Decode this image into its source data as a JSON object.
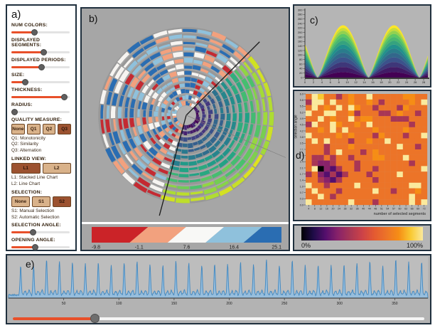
{
  "panels": {
    "a": {
      "label": "a)",
      "sliders": [
        {
          "name": "num-colors",
          "label": "NUM COLORS:",
          "value": 40
        },
        {
          "name": "displayed-segments",
          "label": "DISPLAYED SEGMENTS:",
          "value": 56
        },
        {
          "name": "displayed-periods",
          "label": "DISPLAYED PERIODS:",
          "value": 52
        },
        {
          "name": "size",
          "label": "SIZE:",
          "value": 24
        },
        {
          "name": "thickness",
          "label": "THICKNESS:",
          "value": 92
        },
        {
          "name": "radius",
          "label": "RADIUS:",
          "value": 6
        }
      ],
      "groups": [
        {
          "name": "quality-measure",
          "heading": "QUALITY MEASURE:",
          "buttons": [
            "None",
            "Q1",
            "Q2",
            "Q3"
          ],
          "active": 3,
          "notes": [
            "Q1: Monotonicity",
            "Q2: Similarity",
            "Q3: Alternation"
          ]
        },
        {
          "name": "linked-view",
          "heading": "LINKED VIEW:",
          "buttons": [
            "L1",
            "L2"
          ],
          "active": 0,
          "notes": [
            "L1: Stacked Line Chart",
            "L2: Line Chart"
          ]
        },
        {
          "name": "selection",
          "heading": "SELECTION:",
          "buttons": [
            "None",
            "S1",
            "S2"
          ],
          "active": 2,
          "notes": [
            "S1: Manual Selection",
            "S2: Automatic Selection"
          ]
        }
      ],
      "angle_sliders": [
        {
          "name": "selection-angle",
          "label": "SELECTION ANGLE:",
          "value": 38
        },
        {
          "name": "opening-angle",
          "label": "OPENING ANGLE:",
          "value": 42
        }
      ]
    },
    "b": {
      "label": "b)"
    },
    "c": {
      "label": "c)"
    },
    "d": {
      "label": "d)"
    },
    "e": {
      "label": "e)"
    }
  },
  "colors": {
    "accent_orange": "#e8502a",
    "button_tan": "#d9b28a",
    "button_active": "#9c5230",
    "panel_border": "#20303e",
    "panel_gray": "#a6a6a6"
  },
  "chart_data": [
    {
      "id": "b",
      "type": "heatmap",
      "subtype": "radial-ring-heatmap",
      "rings": 13,
      "segments_per_ring": 36,
      "wedge_deg": {
        "start": 255,
        "end": 45
      },
      "selection_line_deg": 337,
      "diverging_palette": [
        "#c42a32",
        "#f2a17e",
        "#f6f4f1",
        "#8fc1dc",
        "#2a6db2"
      ],
      "wedge_palette": [
        "#440154",
        "#46327e",
        "#365c8d",
        "#277f8e",
        "#1fa187",
        "#4ac16d",
        "#a0da39",
        "#e7e419"
      ],
      "legend": {
        "tick_labels": [
          "-9.8",
          "-1.1",
          "7.6",
          "16.4",
          "25.1"
        ],
        "colors": [
          "#cb2328",
          "#f2a17e",
          "#f8f8f6",
          "#8fc1dc",
          "#2a6db2"
        ]
      }
    },
    {
      "id": "c",
      "type": "area",
      "subtype": "stacked-line-chart",
      "xticks": [
        "0",
        "2",
        "4",
        "6",
        "8",
        "10",
        "12",
        "14",
        "16",
        "18",
        "20",
        "22",
        "24",
        "26",
        "28"
      ],
      "yticks": [
        "0",
        "20",
        "40",
        "60",
        "80",
        "100",
        "120",
        "140",
        "160",
        "180",
        "200",
        "220",
        "240",
        "260",
        "280",
        "300"
      ],
      "xlim": [
        0,
        29
      ],
      "ylim": [
        0,
        300
      ],
      "peak_x": [
        9,
        21
      ],
      "valley_x": [
        3,
        15,
        27
      ],
      "peak_total": 232,
      "layers": 13,
      "palette_stops": [
        "#440154",
        "#3b528b",
        "#21918c",
        "#5cc863",
        "#fde725"
      ]
    },
    {
      "id": "d",
      "type": "heatmap",
      "xlabel": "number of selected segments",
      "ylabel": "selection angle",
      "xticks": [
        "4",
        "8",
        "12",
        "16",
        "20",
        "24",
        "28",
        "32",
        "36",
        "40",
        "44",
        "48",
        "51",
        "54",
        "57",
        "60",
        "63",
        "66",
        "69",
        "72"
      ],
      "yticks": [
        "6.0",
        "5.8",
        "5.5",
        "5.2",
        "4.9",
        "4.5",
        "4.2",
        "3.8",
        "3.5",
        "3.1",
        "2.8",
        "2.4",
        "2.1",
        "1.7",
        "1.4",
        "1.0",
        "0.7",
        "0.3",
        "0.0"
      ],
      "level_colors": {
        "0": "#000004",
        "1": "#1f0c48",
        "2": "#550f6d",
        "3": "#88226a",
        "4": "#a83655",
        "5": "#cc4248",
        "6": "#e45a31",
        "7": "#ec7428",
        "8": "#f68d15",
        "9": "#f9c932",
        "a": "#fbe99c"
      },
      "matrix": [
        "7a97747877a777778877",
        "4aa7a77877874777787a",
        "7a787a7a877477748777",
        "a77aa778477744787747",
        "77a7877a788777444777",
        "4a77a87787a777777477",
        "7787a7a7777877778777",
        "a777787877748777477a",
        "7a7a777477877a777777",
        "777477787777777a7747",
        "77747a77747877777777",
        "7447477477788777a777",
        "74334777477777777477",
        "7a03247747747777777a",
        "473242477747777a7777",
        "77432477777477777777",
        "a7747777a77777777aa7",
        "7a777477777a77477787",
        "77a74777777777777a77",
        "a777777a777477777a7a"
      ],
      "colorbar": {
        "min_label": "0%",
        "max_label": "100%"
      }
    },
    {
      "id": "e",
      "type": "line",
      "subtype": "periodic-line-chart",
      "xticks": [
        "50",
        "100",
        "150",
        "200",
        "250",
        "300",
        "350"
      ],
      "xlim": [
        0,
        380
      ],
      "first_peak_x": 11,
      "peak_period": 11.72,
      "line_color": "#4288c0",
      "fill_color": "#97bedd",
      "slider_value": 20
    }
  ]
}
